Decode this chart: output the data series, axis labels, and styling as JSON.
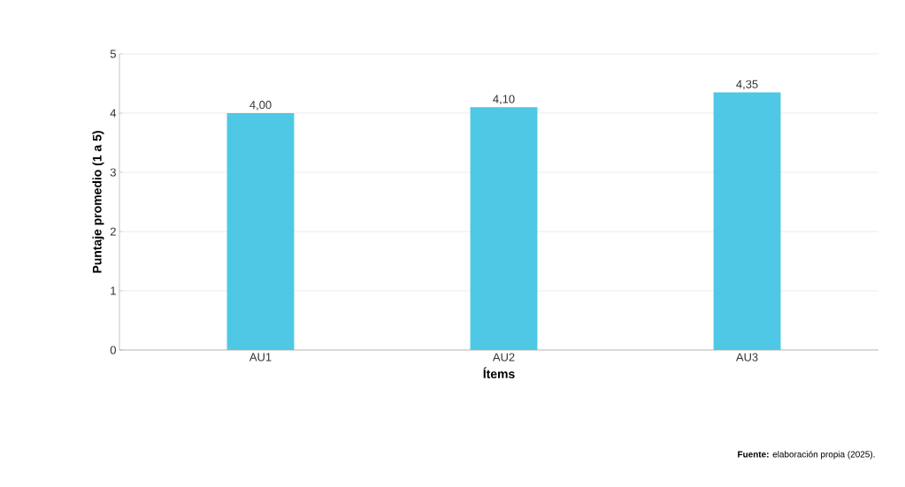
{
  "chart_data": {
    "type": "bar",
    "xlabel": "Ítems",
    "ylabel": "Puntaje promedio (1 a 5)",
    "categories": [
      "AU1",
      "AU2",
      "AU3"
    ],
    "values": [
      4.0,
      4.1,
      4.35
    ],
    "value_labels": [
      "4,00",
      "4,10",
      "4,35"
    ],
    "color": "#4ec8e4",
    "ylim": [
      0,
      5
    ],
    "yticks": [
      0,
      1,
      2,
      3,
      4,
      5
    ],
    "grid": "y",
    "annotations": [
      "**Fuente:** elaboración propia (2025)."
    ]
  }
}
